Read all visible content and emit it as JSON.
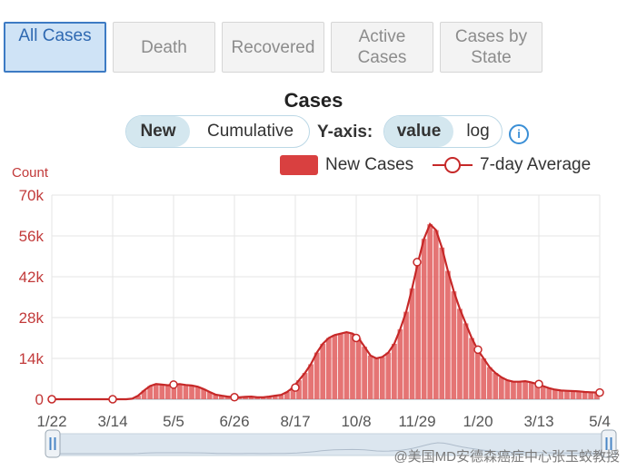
{
  "tabs": [
    {
      "label": "All Cases",
      "active": true
    },
    {
      "label": "Death",
      "active": false
    },
    {
      "label": "Recovered",
      "active": false
    },
    {
      "label": "Active\nCases",
      "active": false
    },
    {
      "label": "Cases by\nState",
      "active": false
    }
  ],
  "controls": {
    "mode": {
      "options": [
        "New",
        "Cumulative"
      ],
      "selected": "New"
    },
    "yaxis_label": "Y-axis:",
    "scale": {
      "options": [
        "value",
        "log"
      ],
      "selected": "value"
    },
    "info_icon": "info-icon"
  },
  "colors": {
    "bars": "#d94040",
    "line": "#c62828",
    "axis_text": "#c23a3a",
    "active_tab": "#3d7bc4"
  },
  "watermark": "@美国MD安德森癌症中心张玉蛟教授",
  "chart_data": {
    "type": "bar",
    "title": "Cases",
    "ylabel": "Count",
    "ylim": [
      0,
      70000
    ],
    "yticks": [
      "0",
      "14k",
      "28k",
      "42k",
      "56k",
      "70k"
    ],
    "ytick_values": [
      0,
      14000,
      28000,
      42000,
      56000,
      70000
    ],
    "xtick_labels": [
      "1/22",
      "3/14",
      "5/5",
      "6/26",
      "8/17",
      "10/8",
      "11/29",
      "1/20",
      "3/13",
      "5/4"
    ],
    "grid": true,
    "legend_position": "top-right",
    "series": [
      {
        "name": "New Cases",
        "type": "bar",
        "values": [
          0,
          0,
          0,
          0,
          0,
          0,
          0,
          0,
          0,
          0,
          0,
          0,
          0,
          200,
          1200,
          3000,
          4500,
          5200,
          5000,
          4800,
          5000,
          5200,
          4900,
          4700,
          4300,
          3500,
          2500,
          1600,
          1200,
          900,
          700,
          700,
          800,
          900,
          700,
          700,
          900,
          1200,
          1500,
          2500,
          4000,
          6500,
          9000,
          12000,
          16000,
          19000,
          21000,
          22000,
          22500,
          23000,
          22500,
          21000,
          18000,
          15000,
          14000,
          14500,
          16000,
          19000,
          24000,
          30000,
          38000,
          47000,
          55000,
          60000,
          58000,
          52000,
          44000,
          37000,
          31000,
          26000,
          21000,
          17000,
          14000,
          11000,
          9000,
          7500,
          6500,
          6000,
          6000,
          6200,
          5800,
          5200,
          4500,
          3800,
          3300,
          3000,
          2900,
          2800,
          2700,
          2500,
          2400,
          2300
        ]
      },
      {
        "name": "7-day Average",
        "type": "line",
        "values": [
          0,
          0,
          0,
          0,
          0,
          0,
          0,
          0,
          0,
          0,
          0,
          0,
          0,
          200,
          1200,
          3000,
          4500,
          5200,
          5000,
          4800,
          5000,
          5200,
          4900,
          4700,
          4300,
          3500,
          2500,
          1600,
          1200,
          900,
          700,
          700,
          800,
          900,
          700,
          700,
          900,
          1200,
          1500,
          2500,
          4000,
          6500,
          9000,
          12000,
          16000,
          19000,
          21000,
          22000,
          22500,
          23000,
          22500,
          21000,
          18000,
          15000,
          14000,
          14500,
          16000,
          19000,
          24000,
          30000,
          38000,
          47000,
          55000,
          60000,
          58000,
          52000,
          44000,
          37000,
          31000,
          26000,
          21000,
          17000,
          14000,
          11000,
          9000,
          7500,
          6500,
          6000,
          6000,
          6200,
          5800,
          5200,
          4500,
          3800,
          3300,
          3000,
          2900,
          2800,
          2700,
          2500,
          2400,
          2300
        ]
      }
    ]
  }
}
